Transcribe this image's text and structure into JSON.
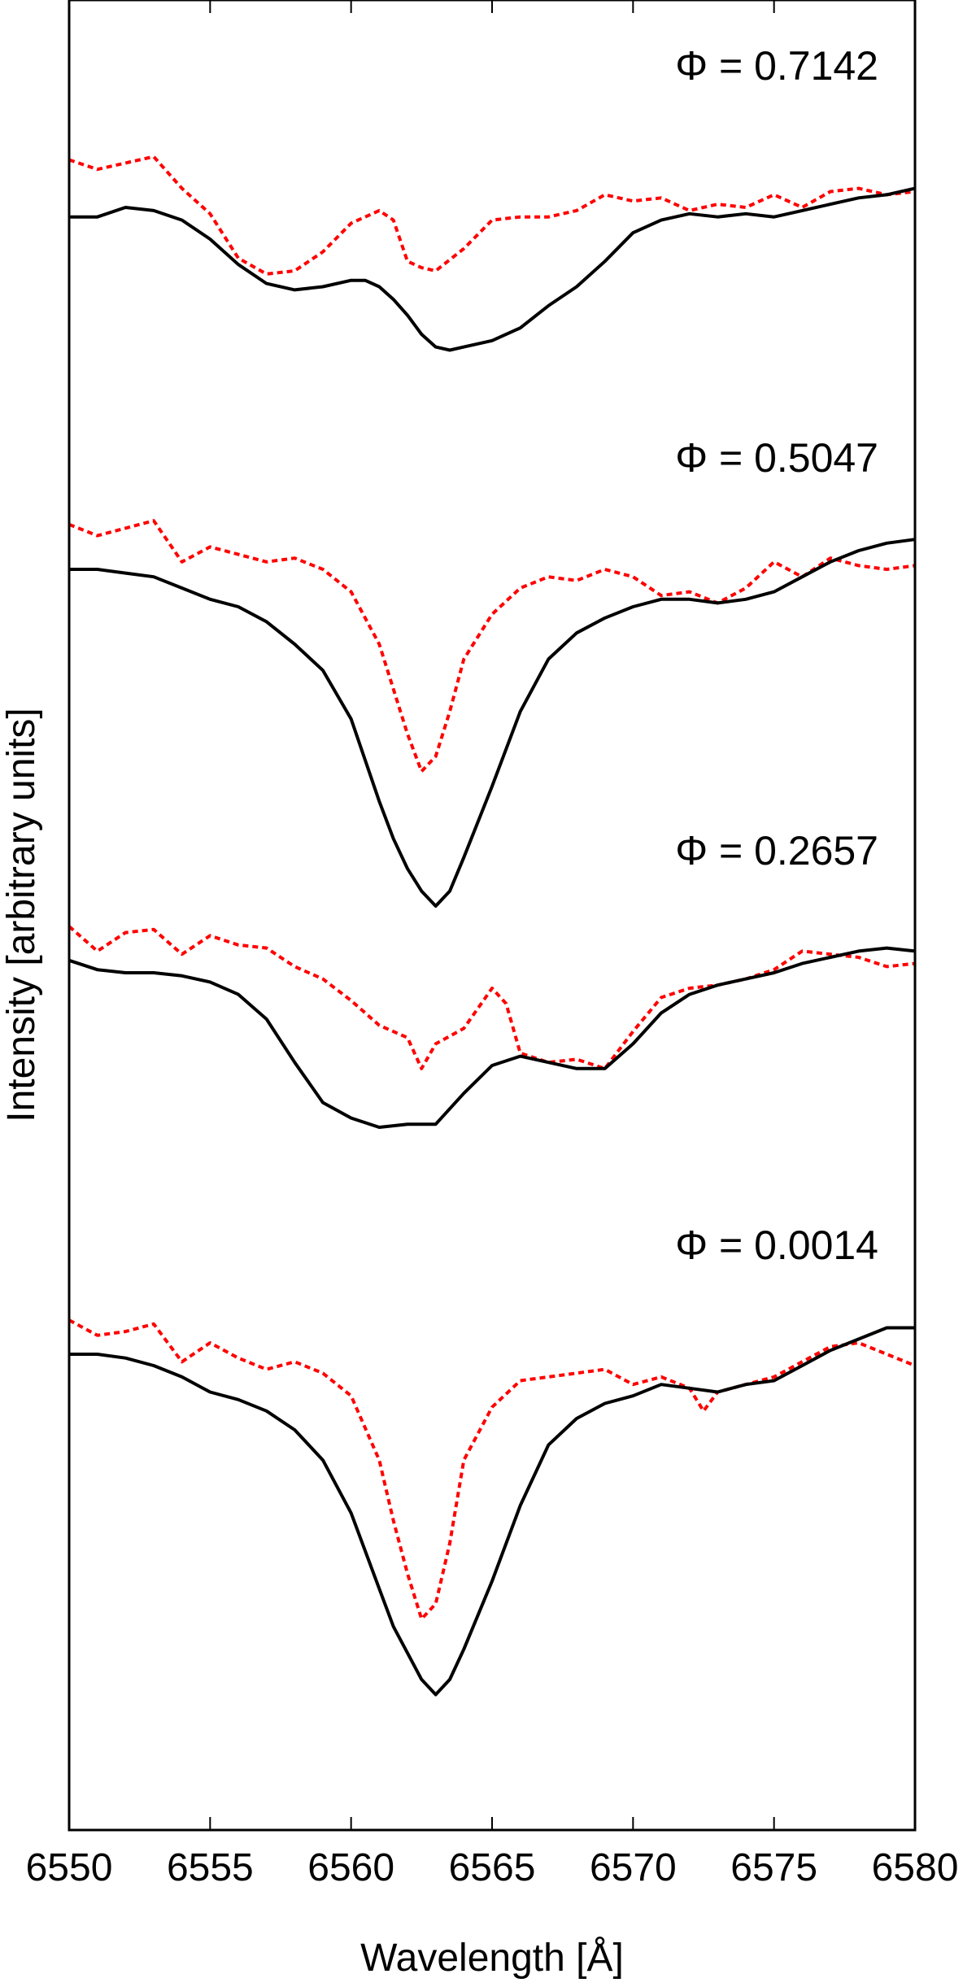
{
  "chart_data": {
    "type": "line",
    "xlabel": "Wavelength [Å]",
    "ylabel": "Intensity [arbitrary units]",
    "xlim": [
      6550,
      6580
    ],
    "x_ticks": [
      "6550",
      "6555",
      "6560",
      "6565",
      "6570",
      "6575",
      "6580"
    ],
    "y_ticks": "none",
    "grid": false,
    "legend": "none",
    "line_colors": {
      "solid": "#000000",
      "dotted": "#ff0000"
    },
    "panels": [
      {
        "label": "Φ = 0.7142",
        "solid": [
          [
            6550,
            0.97
          ],
          [
            6551,
            0.97
          ],
          [
            6552,
            1.0
          ],
          [
            6553,
            0.99
          ],
          [
            6554,
            0.96
          ],
          [
            6555,
            0.9
          ],
          [
            6556,
            0.82
          ],
          [
            6557,
            0.76
          ],
          [
            6558,
            0.74
          ],
          [
            6559,
            0.75
          ],
          [
            6560,
            0.77
          ],
          [
            6560.5,
            0.77
          ],
          [
            6561,
            0.75
          ],
          [
            6561.5,
            0.71
          ],
          [
            6562,
            0.66
          ],
          [
            6562.5,
            0.6
          ],
          [
            6563,
            0.56
          ],
          [
            6563.5,
            0.55
          ],
          [
            6564,
            0.56
          ],
          [
            6565,
            0.58
          ],
          [
            6566,
            0.62
          ],
          [
            6567,
            0.69
          ],
          [
            6568,
            0.75
          ],
          [
            6569,
            0.83
          ],
          [
            6570,
            0.92
          ],
          [
            6571,
            0.96
          ],
          [
            6572,
            0.98
          ],
          [
            6573,
            0.97
          ],
          [
            6574,
            0.98
          ],
          [
            6575,
            0.97
          ],
          [
            6576,
            0.99
          ],
          [
            6577,
            1.01
          ],
          [
            6578,
            1.03
          ],
          [
            6579,
            1.04
          ],
          [
            6580,
            1.06
          ]
        ],
        "dotted": [
          [
            6550,
            1.15
          ],
          [
            6551,
            1.12
          ],
          [
            6552,
            1.14
          ],
          [
            6553,
            1.16
          ],
          [
            6554,
            1.06
          ],
          [
            6555,
            0.98
          ],
          [
            6556,
            0.84
          ],
          [
            6557,
            0.79
          ],
          [
            6558,
            0.8
          ],
          [
            6559,
            0.86
          ],
          [
            6560,
            0.95
          ],
          [
            6561,
            0.99
          ],
          [
            6561.5,
            0.96
          ],
          [
            6562,
            0.83
          ],
          [
            6562.5,
            0.81
          ],
          [
            6563,
            0.8
          ],
          [
            6564,
            0.87
          ],
          [
            6565,
            0.96
          ],
          [
            6566,
            0.97
          ],
          [
            6567,
            0.97
          ],
          [
            6568,
            0.99
          ],
          [
            6569,
            1.04
          ],
          [
            6570,
            1.02
          ],
          [
            6571,
            1.03
          ],
          [
            6572,
            0.99
          ],
          [
            6573,
            1.01
          ],
          [
            6574,
            1.0
          ],
          [
            6575,
            1.04
          ],
          [
            6576,
            1.0
          ],
          [
            6577,
            1.05
          ],
          [
            6578,
            1.06
          ],
          [
            6579,
            1.04
          ],
          [
            6580,
            1.05
          ]
        ]
      },
      {
        "label": "Φ = 0.5047",
        "solid": [
          [
            6550,
            1.0
          ],
          [
            6551,
            1.0
          ],
          [
            6552,
            0.99
          ],
          [
            6553,
            0.98
          ],
          [
            6554,
            0.95
          ],
          [
            6555,
            0.92
          ],
          [
            6556,
            0.9
          ],
          [
            6557,
            0.86
          ],
          [
            6558,
            0.8
          ],
          [
            6559,
            0.73
          ],
          [
            6560,
            0.6
          ],
          [
            6561,
            0.38
          ],
          [
            6561.5,
            0.28
          ],
          [
            6562,
            0.2
          ],
          [
            6562.5,
            0.14
          ],
          [
            6563,
            0.1
          ],
          [
            6563.5,
            0.14
          ],
          [
            6564,
            0.23
          ],
          [
            6565,
            0.42
          ],
          [
            6566,
            0.62
          ],
          [
            6567,
            0.76
          ],
          [
            6568,
            0.83
          ],
          [
            6569,
            0.87
          ],
          [
            6570,
            0.9
          ],
          [
            6571,
            0.92
          ],
          [
            6572,
            0.92
          ],
          [
            6573,
            0.91
          ],
          [
            6574,
            0.92
          ],
          [
            6575,
            0.94
          ],
          [
            6576,
            0.98
          ],
          [
            6577,
            1.02
          ],
          [
            6578,
            1.05
          ],
          [
            6579,
            1.07
          ],
          [
            6580,
            1.08
          ]
        ],
        "dotted": [
          [
            6550,
            1.12
          ],
          [
            6551,
            1.09
          ],
          [
            6552,
            1.11
          ],
          [
            6553,
            1.13
          ],
          [
            6554,
            1.02
          ],
          [
            6555,
            1.06
          ],
          [
            6556,
            1.04
          ],
          [
            6557,
            1.02
          ],
          [
            6558,
            1.03
          ],
          [
            6559,
            1.0
          ],
          [
            6560,
            0.94
          ],
          [
            6561,
            0.8
          ],
          [
            6561.5,
            0.68
          ],
          [
            6562,
            0.56
          ],
          [
            6562.5,
            0.46
          ],
          [
            6563,
            0.5
          ],
          [
            6563.5,
            0.62
          ],
          [
            6564,
            0.76
          ],
          [
            6565,
            0.88
          ],
          [
            6566,
            0.95
          ],
          [
            6567,
            0.98
          ],
          [
            6568,
            0.97
          ],
          [
            6569,
            1.0
          ],
          [
            6570,
            0.98
          ],
          [
            6571,
            0.93
          ],
          [
            6572,
            0.94
          ],
          [
            6573,
            0.91
          ],
          [
            6574,
            0.95
          ],
          [
            6575,
            1.02
          ],
          [
            6576,
            0.98
          ],
          [
            6577,
            1.03
          ],
          [
            6578,
            1.01
          ],
          [
            6579,
            1.0
          ],
          [
            6580,
            1.01
          ]
        ]
      },
      {
        "label": "Φ = 0.2657",
        "solid": [
          [
            6550,
            1.09
          ],
          [
            6551,
            1.06
          ],
          [
            6552,
            1.05
          ],
          [
            6553,
            1.05
          ],
          [
            6554,
            1.04
          ],
          [
            6555,
            1.02
          ],
          [
            6556,
            0.98
          ],
          [
            6557,
            0.9
          ],
          [
            6558,
            0.76
          ],
          [
            6559,
            0.63
          ],
          [
            6560,
            0.58
          ],
          [
            6561,
            0.55
          ],
          [
            6562,
            0.56
          ],
          [
            6563,
            0.56
          ],
          [
            6564,
            0.66
          ],
          [
            6565,
            0.75
          ],
          [
            6566,
            0.78
          ],
          [
            6567,
            0.76
          ],
          [
            6568,
            0.74
          ],
          [
            6569,
            0.74
          ],
          [
            6570,
            0.82
          ],
          [
            6571,
            0.92
          ],
          [
            6572,
            0.98
          ],
          [
            6573,
            1.01
          ],
          [
            6574,
            1.03
          ],
          [
            6575,
            1.05
          ],
          [
            6576,
            1.08
          ],
          [
            6577,
            1.1
          ],
          [
            6578,
            1.12
          ],
          [
            6579,
            1.13
          ],
          [
            6580,
            1.12
          ]
        ],
        "dotted": [
          [
            6550,
            1.2
          ],
          [
            6551,
            1.12
          ],
          [
            6552,
            1.18
          ],
          [
            6553,
            1.19
          ],
          [
            6554,
            1.11
          ],
          [
            6555,
            1.17
          ],
          [
            6556,
            1.14
          ],
          [
            6557,
            1.13
          ],
          [
            6558,
            1.07
          ],
          [
            6559,
            1.03
          ],
          [
            6560,
            0.96
          ],
          [
            6561,
            0.88
          ],
          [
            6562,
            0.84
          ],
          [
            6562.5,
            0.74
          ],
          [
            6563,
            0.82
          ],
          [
            6564,
            0.87
          ],
          [
            6565,
            1.0
          ],
          [
            6565.5,
            0.95
          ],
          [
            6566,
            0.79
          ],
          [
            6567,
            0.76
          ],
          [
            6568,
            0.77
          ],
          [
            6569,
            0.74
          ],
          [
            6570,
            0.86
          ],
          [
            6571,
            0.97
          ],
          [
            6572,
            1.0
          ],
          [
            6573,
            1.01
          ],
          [
            6574,
            1.03
          ],
          [
            6575,
            1.06
          ],
          [
            6576,
            1.12
          ],
          [
            6577,
            1.11
          ],
          [
            6578,
            1.1
          ],
          [
            6579,
            1.07
          ],
          [
            6580,
            1.08
          ]
        ]
      },
      {
        "label": "Φ = 0.0014",
        "solid": [
          [
            6550,
            1.0
          ],
          [
            6551,
            1.0
          ],
          [
            6552,
            0.99
          ],
          [
            6553,
            0.97
          ],
          [
            6554,
            0.94
          ],
          [
            6555,
            0.9
          ],
          [
            6556,
            0.88
          ],
          [
            6557,
            0.85
          ],
          [
            6558,
            0.8
          ],
          [
            6559,
            0.72
          ],
          [
            6560,
            0.58
          ],
          [
            6561,
            0.38
          ],
          [
            6561.5,
            0.28
          ],
          [
            6562,
            0.21
          ],
          [
            6562.5,
            0.14
          ],
          [
            6563,
            0.1
          ],
          [
            6563.5,
            0.14
          ],
          [
            6564,
            0.22
          ],
          [
            6565,
            0.4
          ],
          [
            6566,
            0.6
          ],
          [
            6567,
            0.76
          ],
          [
            6568,
            0.83
          ],
          [
            6569,
            0.87
          ],
          [
            6570,
            0.89
          ],
          [
            6571,
            0.92
          ],
          [
            6572,
            0.91
          ],
          [
            6573,
            0.9
          ],
          [
            6574,
            0.92
          ],
          [
            6575,
            0.93
          ],
          [
            6576,
            0.97
          ],
          [
            6577,
            1.01
          ],
          [
            6578,
            1.04
          ],
          [
            6579,
            1.07
          ],
          [
            6580,
            1.07
          ]
        ],
        "dotted": [
          [
            6550,
            1.09
          ],
          [
            6551,
            1.05
          ],
          [
            6552,
            1.06
          ],
          [
            6553,
            1.08
          ],
          [
            6554,
            0.98
          ],
          [
            6555,
            1.03
          ],
          [
            6556,
            0.99
          ],
          [
            6557,
            0.96
          ],
          [
            6558,
            0.98
          ],
          [
            6559,
            0.95
          ],
          [
            6560,
            0.89
          ],
          [
            6561,
            0.72
          ],
          [
            6561.5,
            0.56
          ],
          [
            6562,
            0.42
          ],
          [
            6562.5,
            0.3
          ],
          [
            6563,
            0.34
          ],
          [
            6563.5,
            0.5
          ],
          [
            6564,
            0.72
          ],
          [
            6565,
            0.86
          ],
          [
            6566,
            0.93
          ],
          [
            6567,
            0.94
          ],
          [
            6568,
            0.95
          ],
          [
            6569,
            0.96
          ],
          [
            6570,
            0.92
          ],
          [
            6571,
            0.94
          ],
          [
            6572,
            0.91
          ],
          [
            6572.5,
            0.85
          ],
          [
            6573,
            0.9
          ],
          [
            6574,
            0.92
          ],
          [
            6575,
            0.94
          ],
          [
            6576,
            0.98
          ],
          [
            6577,
            1.02
          ],
          [
            6578,
            1.03
          ],
          [
            6579,
            1.0
          ],
          [
            6580,
            0.97
          ]
        ]
      }
    ]
  }
}
